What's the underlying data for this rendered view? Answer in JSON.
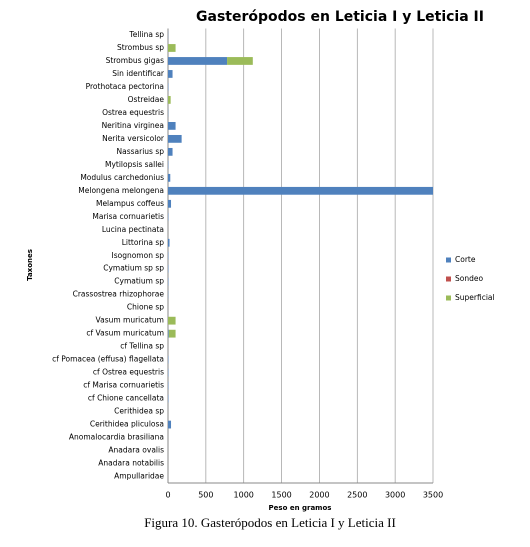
{
  "chart_data": {
    "type": "stacked_barh",
    "title": "Gasterópodos en Leticia I y Leticia II",
    "caption": "Figura 10. Gasterópodos en Leticia I y Leticia II",
    "x_label": "Peso en gramos",
    "y_label": "Taxones",
    "categories": [
      "Tellina sp",
      "Strombus sp",
      "Strombus gigas",
      "Sin identificar",
      "Prothotaca pectorina",
      "Ostreidae",
      "Ostrea equestris",
      "Neritina virginea",
      "Nerita versicolor",
      "Nassarius sp",
      "Mytilopsis sallei",
      "Modulus carchedonius",
      "Melongena melongena",
      "Melampus coffeus",
      "Marisa cornuarietis",
      "Lucina pectinata",
      "Littorina sp",
      "Isognomon sp",
      "Cymatium sp sp",
      "Cymatium sp",
      "Crassostrea rhizophorae",
      "Chione sp",
      "Vasum muricatum",
      "cf Vasum muricatum",
      "cf Tellina sp",
      "cf Pomacea (effusa) flagellata",
      "cf Ostrea equestris",
      "cf Marisa cornuarietis",
      "cf Chione cancellata",
      "Cerithidea sp",
      "Cerithidea pliculosa",
      "Anomalocardia brasiliana",
      "Anadara ovalis",
      "Anadara notabilis",
      "Ampullaridae"
    ],
    "series": [
      {
        "name": "Corte",
        "color": "#4f81bd",
        "values": [
          2,
          0,
          780,
          60,
          5,
          0,
          3,
          100,
          180,
          60,
          5,
          30,
          3500,
          40,
          5,
          0,
          20,
          5,
          5,
          5,
          3,
          0,
          0,
          10,
          0,
          5,
          5,
          5,
          5,
          0,
          40,
          0,
          0,
          0,
          0
        ]
      },
      {
        "name": "Sondeo",
        "color": "#c0504d",
        "values": [
          0,
          0,
          0,
          0,
          0,
          0,
          0,
          0,
          0,
          0,
          0,
          0,
          0,
          0,
          0,
          0,
          0,
          0,
          0,
          0,
          0,
          0,
          0,
          0,
          0,
          0,
          0,
          0,
          0,
          0,
          0,
          0,
          0,
          0,
          0
        ]
      },
      {
        "name": "Superficial",
        "color": "#9bbb59",
        "values": [
          0,
          100,
          340,
          0,
          0,
          35,
          0,
          0,
          0,
          0,
          0,
          0,
          0,
          0,
          0,
          0,
          0,
          0,
          0,
          0,
          0,
          0,
          100,
          90,
          0,
          0,
          0,
          0,
          0,
          0,
          0,
          0,
          0,
          0,
          0
        ]
      }
    ],
    "xlim": [
      0,
      3500
    ],
    "xticks": [
      0,
      500,
      1000,
      1500,
      2000,
      2500,
      3000,
      3500
    ],
    "grid": true,
    "legend": "right"
  }
}
